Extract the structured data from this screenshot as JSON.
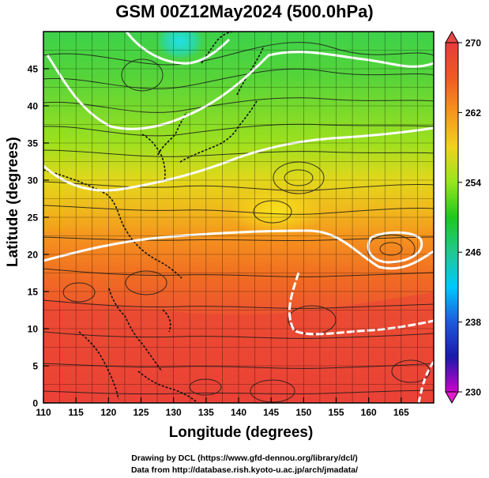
{
  "title": "GSM 00Z12May2024 (500.0hPa)",
  "xlabel": "Longitude (degrees)",
  "ylabel": "Latitude  (degrees)",
  "credits": {
    "line1": "Drawing by DCL (https://www.gfd-dennou.org/library/dcl/)",
    "line2": "Data from http://database.rish.kyoto-u.ac.jp/arch/jmadata/"
  },
  "map": {
    "lon_range": [
      110,
      170
    ],
    "lat_range": [
      0,
      50
    ],
    "lon_ticks": [
      "110",
      "115",
      "120",
      "125",
      "130",
      "135",
      "140",
      "145",
      "150",
      "155",
      "160",
      "165"
    ],
    "lat_ticks": [
      "0",
      "5",
      "10",
      "15",
      "20",
      "25",
      "30",
      "35",
      "40",
      "45"
    ]
  },
  "colorbar": {
    "labels": [
      "270",
      "262",
      "254",
      "246",
      "238",
      "230"
    ],
    "min": 230,
    "max": 270,
    "colors": [
      "#cc00cc",
      "#1a1aaa",
      "#1e5adc",
      "#00c8ff",
      "#22c890",
      "#1ec81e",
      "#96e61e",
      "#f0d21e",
      "#f5961e",
      "#f05a23",
      "#e83c3c"
    ]
  }
}
